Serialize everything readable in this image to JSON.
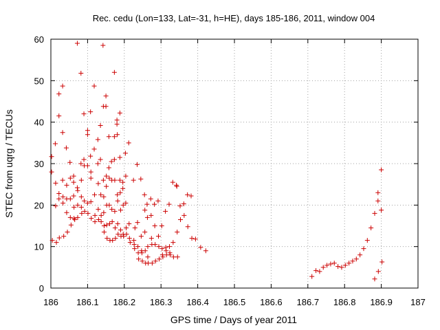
{
  "chart_data": {
    "type": "scatter",
    "title": "Rec. cedu (Lon=133, Lat=-31, h=HE), days 185-186, 2011, window 004",
    "xlabel": "GPS time / Days of year 2011",
    "ylabel": "STEC from uqrg / TECUs",
    "xlim": [
      186,
      187
    ],
    "ylim": [
      0,
      60
    ],
    "x_ticks": [
      186,
      186.1,
      186.2,
      186.3,
      186.4,
      186.5,
      186.6,
      186.7,
      186.8,
      186.9,
      187
    ],
    "x_tick_labels": [
      "186",
      "186.1",
      "186.2",
      "186.3",
      "186.4",
      "186.5",
      "186.6",
      "186.7",
      "186.8",
      "186.9",
      "187"
    ],
    "y_ticks": [
      0,
      10,
      20,
      30,
      40,
      50,
      60
    ],
    "y_tick_labels": [
      "0",
      "10",
      "20",
      "30",
      "40",
      "50",
      "60"
    ],
    "grid": true,
    "marker": "plus",
    "color": "#cc0000",
    "series": [
      {
        "points": [
          [
            186.002,
            31.7
          ],
          [
            186.002,
            28.0
          ],
          [
            186.004,
            11.5
          ],
          [
            186.012,
            34.8
          ],
          [
            186.013,
            25.3
          ],
          [
            186.013,
            19.8
          ],
          [
            186.015,
            11.0
          ],
          [
            186.022,
            46.8
          ],
          [
            186.022,
            41.5
          ],
          [
            186.022,
            22.8
          ],
          [
            186.022,
            21.5
          ],
          [
            186.023,
            12.1
          ],
          [
            186.032,
            48.7
          ],
          [
            186.032,
            37.5
          ],
          [
            186.032,
            26.0
          ],
          [
            186.033,
            22.0
          ],
          [
            186.033,
            20.5
          ],
          [
            186.035,
            12.5
          ],
          [
            186.042,
            33.8
          ],
          [
            186.043,
            24.8
          ],
          [
            186.043,
            21.5
          ],
          [
            186.043,
            18.2
          ],
          [
            186.045,
            13.5
          ],
          [
            186.052,
            30.3
          ],
          [
            186.053,
            26.5
          ],
          [
            186.053,
            21.5
          ],
          [
            186.053,
            17.0
          ],
          [
            186.055,
            15.2
          ],
          [
            186.062,
            27.0
          ],
          [
            186.062,
            25.5
          ],
          [
            186.062,
            22.2
          ],
          [
            186.063,
            19.5
          ],
          [
            186.063,
            16.8
          ],
          [
            186.065,
            16.5
          ],
          [
            186.072,
            59.0
          ],
          [
            186.072,
            24.2
          ],
          [
            186.073,
            23.5
          ],
          [
            186.073,
            20.0
          ],
          [
            186.073,
            17.0
          ],
          [
            186.082,
            51.8
          ],
          [
            186.082,
            30.0
          ],
          [
            186.083,
            26.0
          ],
          [
            186.083,
            22.0
          ],
          [
            186.083,
            19.5
          ],
          [
            186.084,
            18.0
          ],
          [
            186.09,
            42.0
          ],
          [
            186.09,
            31.0
          ],
          [
            186.091,
            29.5
          ],
          [
            186.091,
            21.0
          ],
          [
            186.092,
            18.5
          ],
          [
            186.1,
            38.0
          ],
          [
            186.1,
            37.0
          ],
          [
            186.1,
            29.5
          ],
          [
            186.1,
            20.5
          ],
          [
            186.101,
            18.0
          ],
          [
            186.108,
            42.5
          ],
          [
            186.108,
            31.8
          ],
          [
            186.109,
            28.0
          ],
          [
            186.109,
            26.5
          ],
          [
            186.109,
            20.8
          ],
          [
            186.11,
            16.8
          ],
          [
            186.118,
            48.7
          ],
          [
            186.118,
            33.5
          ],
          [
            186.119,
            22.5
          ],
          [
            186.12,
            17.5
          ],
          [
            186.12,
            16.0
          ],
          [
            186.128,
            35.8
          ],
          [
            186.128,
            30.0
          ],
          [
            186.129,
            25.2
          ],
          [
            186.129,
            19.0
          ],
          [
            186.13,
            16.5
          ],
          [
            186.135,
            39.2
          ],
          [
            186.135,
            31.0
          ],
          [
            186.136,
            22.5
          ],
          [
            186.137,
            17.5
          ],
          [
            186.137,
            16.0
          ],
          [
            186.142,
            58.5
          ],
          [
            186.143,
            43.8
          ],
          [
            186.143,
            26.0
          ],
          [
            186.144,
            22.0
          ],
          [
            186.144,
            18.2
          ],
          [
            186.145,
            15.0
          ],
          [
            186.145,
            13.5
          ],
          [
            186.15,
            46.3
          ],
          [
            186.15,
            43.8
          ],
          [
            186.151,
            27.0
          ],
          [
            186.151,
            24.5
          ],
          [
            186.152,
            20.0
          ],
          [
            186.152,
            15.2
          ],
          [
            186.153,
            12.0
          ],
          [
            186.158,
            36.5
          ],
          [
            186.158,
            29.0
          ],
          [
            186.159,
            26.5
          ],
          [
            186.159,
            20.0
          ],
          [
            186.16,
            15.5
          ],
          [
            186.161,
            11.5
          ],
          [
            186.165,
            30.5
          ],
          [
            186.166,
            26.0
          ],
          [
            186.166,
            19.0
          ],
          [
            186.167,
            16.0
          ],
          [
            186.168,
            11.5
          ],
          [
            186.173,
            52.0
          ],
          [
            186.173,
            36.5
          ],
          [
            186.173,
            31.0
          ],
          [
            186.174,
            26.0
          ],
          [
            186.174,
            18.5
          ],
          [
            186.175,
            14.5
          ],
          [
            186.176,
            12.0
          ],
          [
            186.18,
            40.5
          ],
          [
            186.18,
            39.5
          ],
          [
            186.181,
            37.0
          ],
          [
            186.181,
            22.5
          ],
          [
            186.182,
            21.0
          ],
          [
            186.182,
            15.5
          ],
          [
            186.183,
            13.0
          ],
          [
            186.188,
            42.2
          ],
          [
            186.188,
            31.5
          ],
          [
            186.188,
            26.0
          ],
          [
            186.189,
            23.0
          ],
          [
            186.19,
            18.8
          ],
          [
            186.19,
            14.0
          ],
          [
            186.191,
            12.5
          ],
          [
            186.196,
            25.5
          ],
          [
            186.196,
            24.0
          ],
          [
            186.197,
            20.0
          ],
          [
            186.197,
            13.0
          ],
          [
            186.198,
            12.5
          ],
          [
            186.203,
            32.5
          ],
          [
            186.204,
            27.0
          ],
          [
            186.204,
            20.5
          ],
          [
            186.205,
            14.5
          ],
          [
            186.206,
            13.0
          ],
          [
            186.212,
            35.0
          ],
          [
            186.213,
            15.5
          ],
          [
            186.214,
            12.0
          ],
          [
            186.216,
            11.0
          ],
          [
            186.225,
            26.0
          ],
          [
            186.226,
            11.5
          ],
          [
            186.227,
            10.5
          ],
          [
            186.228,
            9.5
          ],
          [
            186.229,
            14.5
          ],
          [
            186.235,
            29.8
          ],
          [
            186.236,
            15.8
          ],
          [
            186.237,
            10.0
          ],
          [
            186.238,
            8.5
          ],
          [
            186.239,
            7.0
          ],
          [
            186.245,
            26.3
          ],
          [
            186.246,
            12.5
          ],
          [
            186.247,
            9.0
          ],
          [
            186.248,
            8.5
          ],
          [
            186.249,
            6.5
          ],
          [
            186.255,
            22.5
          ],
          [
            186.256,
            18.8
          ],
          [
            186.256,
            13.5
          ],
          [
            186.257,
            9.0
          ],
          [
            186.258,
            6.0
          ],
          [
            186.262,
            20.2
          ],
          [
            186.263,
            17.0
          ],
          [
            186.264,
            10.0
          ],
          [
            186.264,
            7.5
          ],
          [
            186.265,
            6.0
          ],
          [
            186.272,
            21.5
          ],
          [
            186.273,
            17.5
          ],
          [
            186.274,
            12.0
          ],
          [
            186.275,
            10.5
          ],
          [
            186.276,
            6.0
          ],
          [
            186.282,
            20.2
          ],
          [
            186.283,
            15.0
          ],
          [
            186.284,
            10.5
          ],
          [
            186.285,
            6.5
          ],
          [
            186.292,
            21.0
          ],
          [
            186.293,
            12.5
          ],
          [
            186.294,
            10.0
          ],
          [
            186.295,
            7.0
          ],
          [
            186.302,
            15.0
          ],
          [
            186.303,
            9.5
          ],
          [
            186.304,
            8.0
          ],
          [
            186.305,
            7.5
          ],
          [
            186.312,
            18.5
          ],
          [
            186.313,
            9.8
          ],
          [
            186.314,
            9.0
          ],
          [
            186.315,
            8.0
          ],
          [
            186.322,
            20.2
          ],
          [
            186.323,
            10.0
          ],
          [
            186.324,
            8.5
          ],
          [
            186.325,
            8.0
          ],
          [
            186.332,
            25.5
          ],
          [
            186.333,
            11.0
          ],
          [
            186.334,
            7.5
          ],
          [
            186.342,
            24.8
          ],
          [
            186.343,
            24.5
          ],
          [
            186.344,
            13.5
          ],
          [
            186.345,
            7.5
          ],
          [
            186.352,
            19.8
          ],
          [
            186.353,
            16.5
          ],
          [
            186.362,
            20.3
          ],
          [
            186.363,
            17.5
          ],
          [
            186.372,
            22.5
          ],
          [
            186.373,
            14.8
          ],
          [
            186.382,
            22.2
          ],
          [
            186.384,
            12.0
          ],
          [
            186.394,
            11.8
          ],
          [
            186.408,
            9.8
          ],
          [
            186.422,
            9.0
          ],
          [
            186.711,
            2.8
          ],
          [
            186.722,
            4.2
          ],
          [
            186.732,
            4.0
          ],
          [
            186.742,
            5.0
          ],
          [
            186.752,
            5.5
          ],
          [
            186.762,
            5.8
          ],
          [
            186.772,
            6.0
          ],
          [
            186.782,
            5.2
          ],
          [
            186.792,
            5.0
          ],
          [
            186.802,
            5.5
          ],
          [
            186.812,
            6.0
          ],
          [
            186.822,
            6.5
          ],
          [
            186.832,
            7.0
          ],
          [
            186.842,
            8.0
          ],
          [
            186.852,
            9.5
          ],
          [
            186.862,
            11.5
          ],
          [
            186.872,
            14.5
          ],
          [
            186.882,
            18.0
          ],
          [
            186.882,
            2.2
          ],
          [
            186.891,
            23.0
          ],
          [
            186.891,
            21.0
          ],
          [
            186.892,
            4.0
          ],
          [
            186.9,
            28.5
          ],
          [
            186.9,
            18.8
          ],
          [
            186.902,
            6.3
          ]
        ]
      }
    ]
  }
}
